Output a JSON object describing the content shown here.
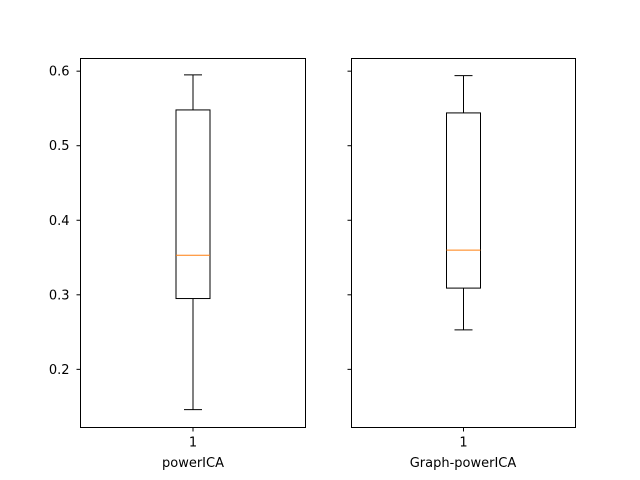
{
  "chart_data": [
    {
      "type": "box",
      "category_ticks": [
        "1"
      ],
      "xlabel": "powerICA",
      "ylabel": "",
      "title": "",
      "ylim": [
        0.122,
        0.617
      ],
      "y_ticks": [
        "0.2",
        "0.3",
        "0.4",
        "0.5",
        "0.6"
      ],
      "show_y_tick_labels": true,
      "boxes": [
        {
          "whisker_low": 0.146,
          "q1": 0.295,
          "median": 0.353,
          "q3": 0.548,
          "whisker_high": 0.595
        }
      ]
    },
    {
      "type": "box",
      "category_ticks": [
        "1"
      ],
      "xlabel": "Graph-powerICA",
      "ylabel": "",
      "title": "",
      "ylim": [
        0.122,
        0.617
      ],
      "y_ticks": [
        "0.2",
        "0.3",
        "0.4",
        "0.5",
        "0.6"
      ],
      "show_y_tick_labels": false,
      "boxes": [
        {
          "whisker_low": 0.253,
          "q1": 0.309,
          "median": 0.36,
          "q3": 0.544,
          "whisker_high": 0.594
        }
      ]
    }
  ],
  "colors": {
    "box_line": "#000000",
    "median_line": "#ff7f0e",
    "axes_edge": "#000000",
    "background": "#ffffff"
  }
}
